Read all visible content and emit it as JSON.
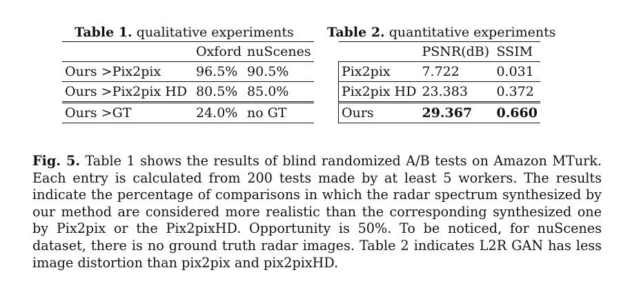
{
  "table1": {
    "caption_label": "Table 1.",
    "caption_text": "qualitative experiments",
    "columns": [
      "",
      "Oxford",
      "nuScenes"
    ],
    "rows": [
      [
        "Ours >Pix2pix",
        "96.5%",
        "90.5%"
      ],
      [
        "Ours >Pix2pix HD",
        "80.5%",
        "85.0%"
      ],
      [
        "Ours >GT",
        "24.0%",
        "no GT"
      ]
    ]
  },
  "table2": {
    "caption_label": "Table 2.",
    "caption_text": "quantitative experiments",
    "columns": [
      "",
      "PSNR(dB)",
      "SSIM"
    ],
    "rows": [
      [
        "Pix2pix",
        "7.722",
        "0.031"
      ],
      [
        "Pix2pix HD",
        "23.383",
        "0.372"
      ],
      [
        "Ours",
        "29.367",
        "0.660"
      ]
    ]
  },
  "figure_caption": {
    "label": "Fig. 5.",
    "text": "Table 1 shows the results of blind randomized A/B tests on Amazon MTurk. Each entry is calculated from 200 tests made by at least 5 workers. The results indicate the percentage of comparisons in which the radar spectrum synthesized by our method are considered more realistic than the corresponding synthesized one by Pix2pix or the Pix2pixHD. Opportunity is 50%. To be noticed, for nuScenes dataset, there is no ground truth radar images. Table 2 indicates L2R GAN has less image distortion than pix2pix and pix2pixHD."
  }
}
